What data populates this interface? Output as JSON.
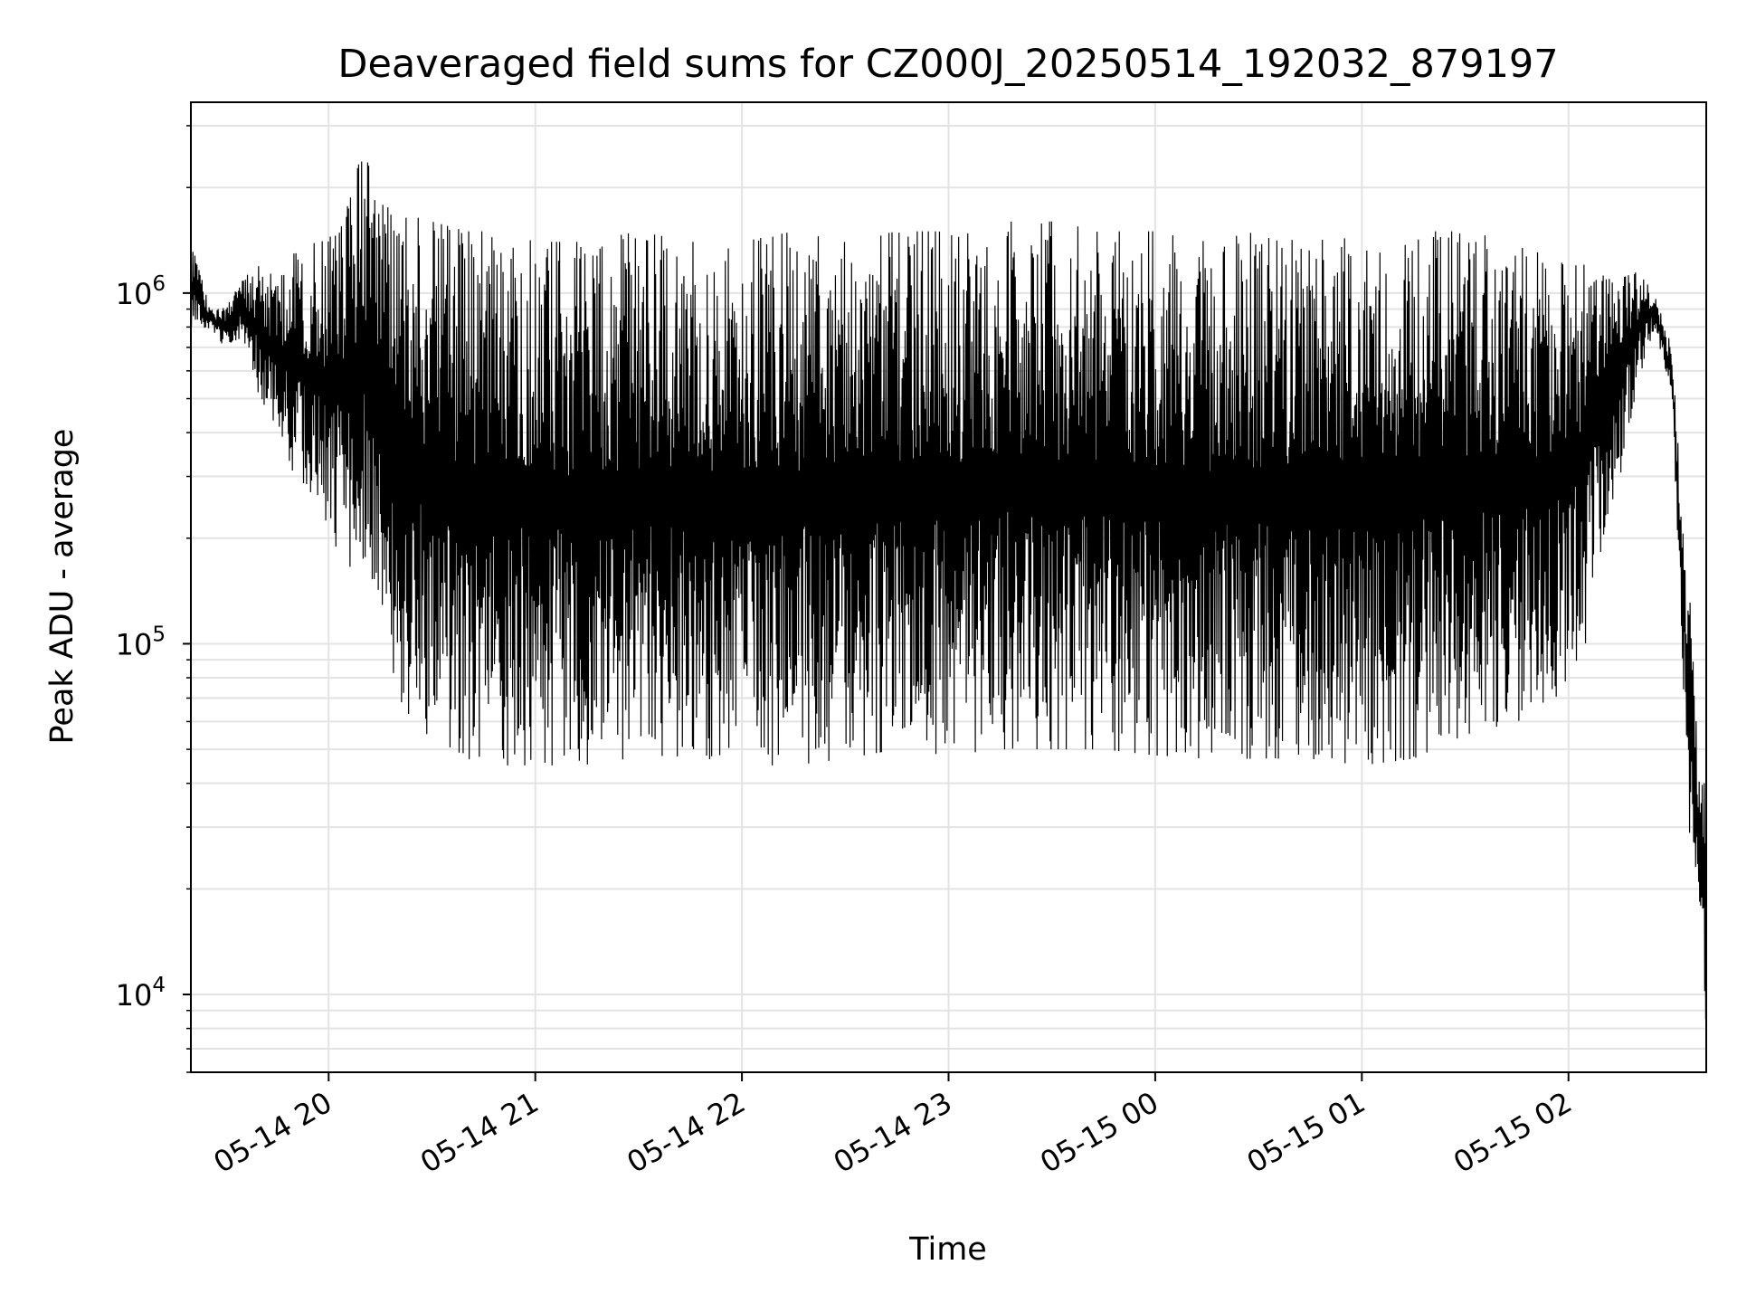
{
  "chart_data": {
    "type": "line",
    "title": "Deaveraged field sums for CZ000J_20250514_192032_879197",
    "xlabel": "Time",
    "ylabel": "Peak ADU - average",
    "y_scale": "log",
    "ylim": [
      6000,
      3500000
    ],
    "xlim": [
      "2025-05-14 19:20",
      "2025-05-15 02:40"
    ],
    "grid": true,
    "line_color": "#000000",
    "x_ticks": [
      {
        "value": "2025-05-14 20:00",
        "label": "05-14 20"
      },
      {
        "value": "2025-05-14 21:00",
        "label": "05-14 21"
      },
      {
        "value": "2025-05-14 22:00",
        "label": "05-14 22"
      },
      {
        "value": "2025-05-14 23:00",
        "label": "05-14 23"
      },
      {
        "value": "2025-05-15 00:00",
        "label": "05-15 00"
      },
      {
        "value": "2025-05-15 01:00",
        "label": "05-15 01"
      },
      {
        "value": "2025-05-15 02:00",
        "label": "05-15 02"
      }
    ],
    "y_ticks": [
      {
        "value": 10000,
        "base": "10",
        "exp": "4"
      },
      {
        "value": 100000,
        "base": "10",
        "exp": "5"
      },
      {
        "value": 1000000,
        "base": "10",
        "exp": "6"
      }
    ],
    "series": [
      {
        "x": [
          "2025-05-14 19:20",
          "2025-05-14 19:25",
          "2025-05-14 19:30",
          "2025-05-14 19:35",
          "2025-05-14 19:40",
          "2025-05-14 19:45",
          "2025-05-14 19:50",
          "2025-05-14 19:55",
          "2025-05-14 20:00",
          "2025-05-14 20:05",
          "2025-05-14 20:10",
          "2025-05-14 20:15",
          "2025-05-14 20:20",
          "2025-05-14 20:30",
          "2025-05-14 20:40",
          "2025-05-14 20:50",
          "2025-05-14 21:00",
          "2025-05-14 21:15",
          "2025-05-14 21:30",
          "2025-05-14 21:45",
          "2025-05-14 22:00",
          "2025-05-14 22:15",
          "2025-05-14 22:30",
          "2025-05-14 22:45",
          "2025-05-14 23:00",
          "2025-05-14 23:15",
          "2025-05-14 23:30",
          "2025-05-14 23:45",
          "2025-05-15 00:00",
          "2025-05-15 00:15",
          "2025-05-15 00:30",
          "2025-05-15 00:45",
          "2025-05-15 01:00",
          "2025-05-15 01:15",
          "2025-05-15 01:30",
          "2025-05-15 01:45",
          "2025-05-15 01:55",
          "2025-05-15 02:05",
          "2025-05-15 02:10",
          "2025-05-15 02:15",
          "2025-05-15 02:20",
          "2025-05-15 02:25",
          "2025-05-15 02:30",
          "2025-05-15 02:35",
          "2025-05-15 02:38",
          "2025-05-15 02:40"
        ],
        "y_upper": [
          1400000,
          950000,
          900000,
          1100000,
          1200000,
          1100000,
          1300000,
          1400000,
          1500000,
          1700000,
          2600000,
          1800000,
          1700000,
          1600000,
          1500000,
          1500000,
          1400000,
          1400000,
          1500000,
          1400000,
          1400000,
          1500000,
          1400000,
          1500000,
          1500000,
          1600000,
          1600000,
          1500000,
          1500000,
          1400000,
          1500000,
          1500000,
          1400000,
          1500000,
          1500000,
          1400000,
          1300000,
          1200000,
          1150000,
          1100000,
          1150000,
          1000000,
          700000,
          150000,
          40000,
          40000
        ],
        "y_lower": [
          800000,
          780000,
          700000,
          750000,
          500000,
          400000,
          300000,
          250000,
          200000,
          170000,
          150000,
          140000,
          70000,
          50000,
          47000,
          45000,
          45000,
          45000,
          47000,
          48000,
          45000,
          45000,
          47000,
          50000,
          48000,
          50000,
          50000,
          50000,
          48000,
          47000,
          47000,
          47000,
          45000,
          47000,
          55000,
          60000,
          65000,
          100000,
          200000,
          300000,
          550000,
          800000,
          500000,
          30000,
          15000,
          7800
        ]
      }
    ]
  }
}
